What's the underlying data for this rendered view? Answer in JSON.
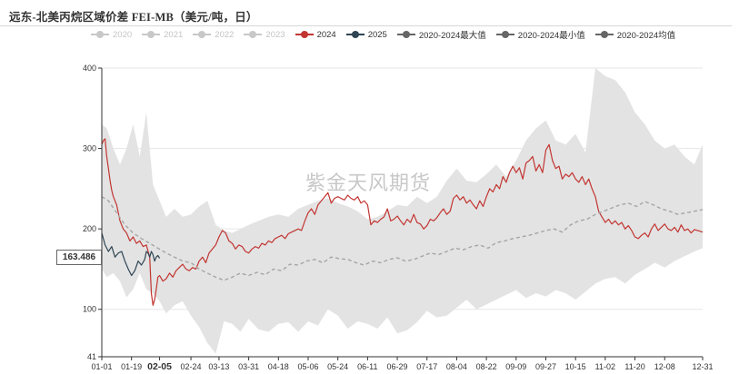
{
  "chart_data": {
    "type": "line",
    "title": "远东-北美丙烷区域价差 FEI-MB（美元/吨，日）",
    "watermark": "紫金天风期货",
    "current_value_label": "163.486",
    "ylim": [
      41,
      400
    ],
    "y_ticks": [
      41,
      100,
      200,
      300,
      400
    ],
    "x_ticks": [
      "01-01",
      "01-19",
      "02-05",
      "02-24",
      "03-13",
      "03-31",
      "04-18",
      "05-06",
      "05-24",
      "06-11",
      "06-29",
      "07-17",
      "08-04",
      "08-22",
      "09-09",
      "09-27",
      "10-15",
      "11-02",
      "11-20",
      "12-08",
      "12-31"
    ],
    "x_tick_days": [
      1,
      19,
      36,
      55,
      72,
      90,
      108,
      126,
      144,
      162,
      180,
      198,
      216,
      234,
      252,
      270,
      288,
      306,
      324,
      342,
      365
    ],
    "highlighted_tick": "02-05",
    "legend": [
      {
        "name": "2020",
        "color": "#c8c8c8",
        "active": false
      },
      {
        "name": "2021",
        "color": "#c8c8c8",
        "active": false
      },
      {
        "name": "2022",
        "color": "#c8c8c8",
        "active": false
      },
      {
        "name": "2023",
        "color": "#c8c8c8",
        "active": false
      },
      {
        "name": "2024",
        "color": "#c23531",
        "active": true
      },
      {
        "name": "2025",
        "color": "#2f4554",
        "active": true
      },
      {
        "name": "2020-2024最大值",
        "color": "#666666",
        "active": true
      },
      {
        "name": "2020-2024最小值",
        "color": "#666666",
        "active": true
      },
      {
        "name": "2020-2024均值",
        "color": "#666666",
        "active": true
      }
    ],
    "band": {
      "days": [
        1,
        4,
        8,
        12,
        16,
        20,
        24,
        28,
        32,
        36,
        40,
        45,
        50,
        55,
        60,
        65,
        70,
        75,
        80,
        85,
        90,
        96,
        102,
        108,
        114,
        120,
        126,
        132,
        138,
        144,
        150,
        156,
        162,
        168,
        174,
        180,
        186,
        192,
        198,
        204,
        210,
        216,
        222,
        228,
        234,
        240,
        246,
        252,
        258,
        264,
        270,
        276,
        282,
        288,
        294,
        300,
        306,
        312,
        318,
        324,
        330,
        336,
        342,
        348,
        354,
        360,
        365
      ],
      "max": [
        330,
        325,
        300,
        280,
        300,
        330,
        290,
        345,
        255,
        235,
        215,
        225,
        215,
        218,
        228,
        235,
        205,
        198,
        195,
        200,
        205,
        210,
        215,
        218,
        215,
        225,
        230,
        235,
        238,
        232,
        228,
        222,
        212,
        215,
        222,
        230,
        228,
        240,
        232,
        240,
        260,
        275,
        260,
        258,
        268,
        280,
        265,
        285,
        310,
        325,
        335,
        310,
        305,
        318,
        295,
        400,
        390,
        385,
        370,
        345,
        330,
        310,
        300,
        305,
        290,
        280,
        305
      ],
      "min": [
        150,
        140,
        145,
        135,
        115,
        125,
        145,
        125,
        120,
        110,
        95,
        105,
        110,
        92,
        78,
        58,
        45,
        85,
        82,
        72,
        88,
        75,
        72,
        82,
        84,
        72,
        85,
        80,
        100,
        92,
        76,
        85,
        82,
        76,
        90,
        70,
        74,
        84,
        98,
        90,
        92,
        102,
        112,
        100,
        106,
        112,
        118,
        124,
        114,
        120,
        116,
        124,
        120,
        112,
        122,
        132,
        138,
        140,
        132,
        143,
        150,
        158,
        152,
        160,
        166,
        172,
        176
      ]
    },
    "series": [
      {
        "name": "2024",
        "color": "#c23531",
        "style": "solid",
        "x": [
          1,
          2,
          3,
          4,
          5,
          6,
          7,
          8,
          10,
          12,
          14,
          16,
          18,
          20,
          22,
          24,
          26,
          28,
          30,
          31,
          32,
          33,
          34,
          35,
          36,
          38,
          40,
          42,
          44,
          46,
          48,
          50,
          52,
          54,
          56,
          58,
          60,
          62,
          64,
          66,
          68,
          70,
          72,
          74,
          76,
          78,
          80,
          82,
          84,
          86,
          88,
          90,
          92,
          94,
          96,
          98,
          100,
          102,
          104,
          106,
          108,
          110,
          112,
          114,
          116,
          118,
          120,
          122,
          124,
          126,
          128,
          130,
          132,
          134,
          136,
          138,
          140,
          142,
          144,
          146,
          148,
          150,
          152,
          154,
          156,
          158,
          160,
          162,
          164,
          166,
          168,
          170,
          172,
          174,
          176,
          178,
          180,
          182,
          184,
          186,
          188,
          190,
          192,
          194,
          196,
          198,
          200,
          202,
          204,
          206,
          208,
          210,
          212,
          214,
          216,
          218,
          220,
          222,
          224,
          226,
          228,
          230,
          232,
          234,
          236,
          238,
          240,
          242,
          244,
          246,
          248,
          250,
          252,
          254,
          256,
          258,
          260,
          262,
          264,
          266,
          268,
          270,
          272,
          274,
          276,
          278,
          280,
          282,
          284,
          286,
          288,
          290,
          292,
          294,
          296,
          298,
          300,
          302,
          304,
          306,
          308,
          310,
          312,
          314,
          316,
          318,
          320,
          322,
          324,
          326,
          328,
          330,
          332,
          334,
          336,
          338,
          340,
          342,
          344,
          346,
          348,
          350,
          352,
          354,
          356,
          358,
          360,
          362,
          365
        ],
        "values": [
          305,
          310,
          312,
          290,
          275,
          260,
          248,
          240,
          230,
          210,
          200,
          195,
          185,
          190,
          182,
          185,
          178,
          180,
          165,
          120,
          105,
          112,
          125,
          140,
          142,
          135,
          138,
          145,
          140,
          148,
          152,
          156,
          150,
          148,
          152,
          150,
          160,
          165,
          158,
          170,
          175,
          180,
          190,
          198,
          195,
          185,
          182,
          175,
          180,
          178,
          172,
          170,
          175,
          178,
          176,
          182,
          180,
          185,
          183,
          188,
          190,
          192,
          188,
          194,
          196,
          198,
          200,
          198,
          210,
          220,
          225,
          218,
          230,
          235,
          240,
          245,
          232,
          238,
          240,
          238,
          236,
          242,
          238,
          236,
          240,
          232,
          235,
          230,
          205,
          210,
          208,
          212,
          215,
          225,
          210,
          212,
          216,
          210,
          205,
          212,
          208,
          218,
          208,
          206,
          200,
          204,
          212,
          210,
          214,
          220,
          225,
          218,
          222,
          238,
          242,
          236,
          240,
          232,
          236,
          230,
          225,
          235,
          228,
          240,
          250,
          246,
          255,
          250,
          265,
          258,
          270,
          278,
          270,
          276,
          262,
          282,
          285,
          290,
          272,
          280,
          270,
          298,
          305,
          285,
          275,
          278,
          262,
          268,
          265,
          270,
          262,
          258,
          265,
          255,
          262,
          250,
          240,
          222,
          215,
          208,
          212,
          206,
          210,
          205,
          208,
          200,
          204,
          198,
          190,
          188,
          192,
          195,
          190,
          200,
          206,
          198,
          202,
          206,
          200,
          198,
          202,
          196,
          205,
          198,
          200,
          195,
          199,
          198,
          196
        ]
      },
      {
        "name": "2025",
        "color": "#2f4554",
        "style": "solid",
        "x": [
          1,
          3,
          5,
          7,
          9,
          11,
          13,
          15,
          17,
          19,
          21,
          23,
          25,
          27,
          28,
          29,
          30,
          31,
          32,
          33,
          34,
          35,
          36
        ],
        "values": [
          195,
          180,
          172,
          178,
          165,
          170,
          172,
          160,
          150,
          142,
          148,
          160,
          155,
          162,
          172,
          170,
          165,
          172,
          168,
          160,
          165,
          167,
          163.486
        ]
      },
      {
        "name": "2020-2024均值",
        "color": "#a5a5a5",
        "style": "dashed",
        "x": [
          1,
          5,
          10,
          15,
          20,
          25,
          30,
          35,
          40,
          45,
          50,
          55,
          60,
          65,
          70,
          75,
          80,
          85,
          90,
          95,
          100,
          105,
          110,
          115,
          120,
          125,
          130,
          135,
          140,
          145,
          150,
          155,
          160,
          165,
          170,
          175,
          180,
          185,
          190,
          195,
          200,
          205,
          210,
          215,
          220,
          225,
          230,
          235,
          240,
          245,
          250,
          255,
          260,
          265,
          270,
          275,
          280,
          285,
          290,
          295,
          300,
          305,
          310,
          315,
          320,
          325,
          330,
          335,
          340,
          345,
          350,
          355,
          360,
          365
        ],
        "values": [
          240,
          235,
          220,
          205,
          195,
          188,
          182,
          176,
          170,
          165,
          160,
          158,
          150,
          145,
          140,
          136,
          140,
          145,
          142,
          146,
          143,
          150,
          148,
          156,
          155,
          160,
          162,
          158,
          165,
          163,
          162,
          158,
          155,
          160,
          158,
          162,
          164,
          160,
          162,
          166,
          170,
          168,
          172,
          176,
          174,
          178,
          180,
          176,
          183,
          185,
          188,
          190,
          192,
          195,
          198,
          200,
          196,
          205,
          210,
          212,
          218,
          222,
          226,
          230,
          232,
          228,
          234,
          230,
          225,
          222,
          218,
          220,
          222,
          224
        ]
      }
    ]
  }
}
